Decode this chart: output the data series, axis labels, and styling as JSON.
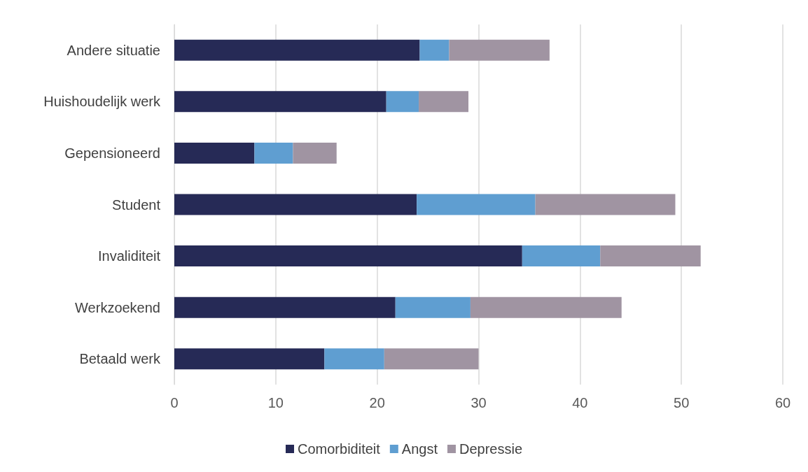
{
  "chart_data": {
    "type": "bar",
    "orientation": "horizontal",
    "stacked": true,
    "categories": [
      "Andere situatie",
      "Huishoudelijk werk",
      "Gepensioneerd",
      "Student",
      "Invaliditeit",
      "Werkzoekend",
      "Betaald werk"
    ],
    "series": [
      {
        "name": "Comorbiditeit",
        "color": "#262a56",
        "values": [
          24.2,
          20.9,
          7.9,
          23.9,
          34.3,
          21.8,
          14.8
        ]
      },
      {
        "name": "Angst",
        "color": "#5f9ed1",
        "values": [
          2.9,
          3.2,
          3.8,
          11.7,
          7.7,
          7.4,
          5.9
        ]
      },
      {
        "name": "Depressie",
        "color": "#a094a2",
        "values": [
          9.9,
          4.9,
          4.3,
          13.8,
          9.9,
          14.9,
          9.3
        ]
      }
    ],
    "xlim": [
      0,
      60
    ],
    "xticks": [
      0,
      10,
      20,
      30,
      40,
      50,
      60
    ],
    "grid": "x",
    "legend": "bottom"
  }
}
